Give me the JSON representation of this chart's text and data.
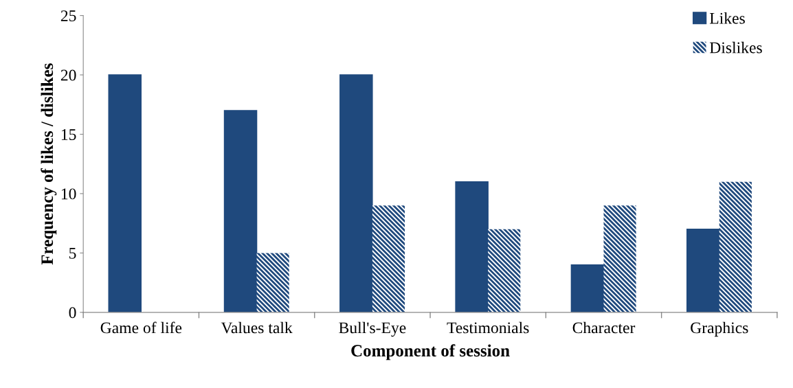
{
  "chart_data": {
    "type": "bar",
    "xlabel": "Component of session",
    "ylabel": "Frequency of likes / dislikes",
    "categories": [
      "Game of life",
      "Values talk",
      "Bull's-Eye",
      "Testimonials",
      "Character",
      "Graphics"
    ],
    "series": [
      {
        "name": "Likes",
        "color": "#1f497d",
        "values": [
          20,
          17,
          20,
          11,
          4,
          7
        ]
      },
      {
        "name": "Dislikes",
        "color": "#1f497d",
        "values": [
          0,
          5,
          9,
          7,
          9,
          11
        ]
      }
    ],
    "ylim": [
      0,
      25
    ],
    "yticks": [
      0,
      5,
      10,
      15,
      20,
      25
    ],
    "grid": false,
    "legend": "top right"
  }
}
